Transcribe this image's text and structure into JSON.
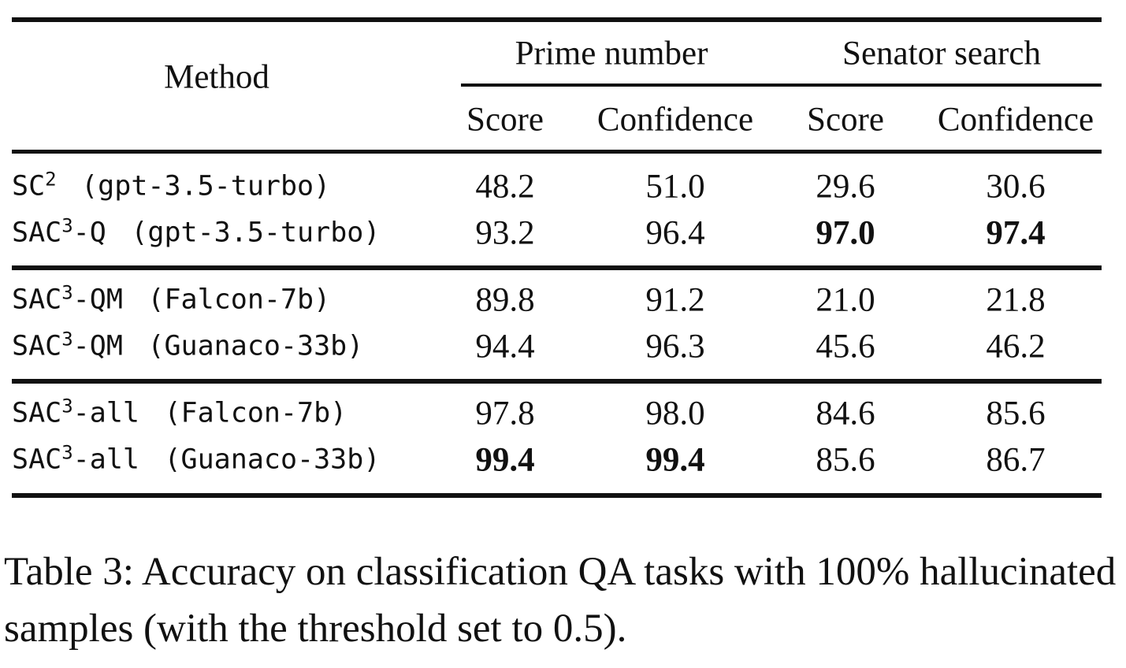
{
  "table": {
    "header": {
      "method": "Method",
      "groups": [
        {
          "label": "Prime number",
          "columns": [
            "Score",
            "Confidence"
          ]
        },
        {
          "label": "Senator search",
          "columns": [
            "Score",
            "Confidence"
          ]
        }
      ]
    },
    "sections": [
      [
        {
          "method": {
            "base": "SC",
            "sup": "2",
            "model": "(gpt-3.5-turbo)"
          },
          "cells": [
            "48.2",
            "51.0",
            "29.6",
            "30.6"
          ]
        },
        {
          "method": {
            "base": "SAC",
            "sup": "3",
            "variant": "-Q",
            "model": "(gpt-3.5-turbo)"
          },
          "cells": [
            "93.2",
            "96.4",
            "97.0",
            "97.4"
          ],
          "bold": [
            2,
            3
          ]
        }
      ],
      [
        {
          "method": {
            "base": "SAC",
            "sup": "3",
            "variant": "-QM",
            "model": "(Falcon-7b)"
          },
          "cells": [
            "89.8",
            "91.2",
            "21.0",
            "21.8"
          ]
        },
        {
          "method": {
            "base": "SAC",
            "sup": "3",
            "variant": "-QM",
            "model": "(Guanaco-33b)"
          },
          "cells": [
            "94.4",
            "96.3",
            "45.6",
            "46.2"
          ]
        }
      ],
      [
        {
          "method": {
            "base": "SAC",
            "sup": "3",
            "variant": "-all",
            "model": "(Falcon-7b)"
          },
          "cells": [
            "97.8",
            "98.0",
            "84.6",
            "85.6"
          ]
        },
        {
          "method": {
            "base": "SAC",
            "sup": "3",
            "variant": "-all",
            "model": "(Guanaco-33b)"
          },
          "cells": [
            "99.4",
            "99.4",
            "85.6",
            "86.7"
          ],
          "bold": [
            0,
            1
          ]
        }
      ]
    ]
  },
  "caption": {
    "label": "Table 3:",
    "text": "Accuracy on classification QA tasks with 100% hallucinated samples (with the threshold set to 0.5)."
  }
}
